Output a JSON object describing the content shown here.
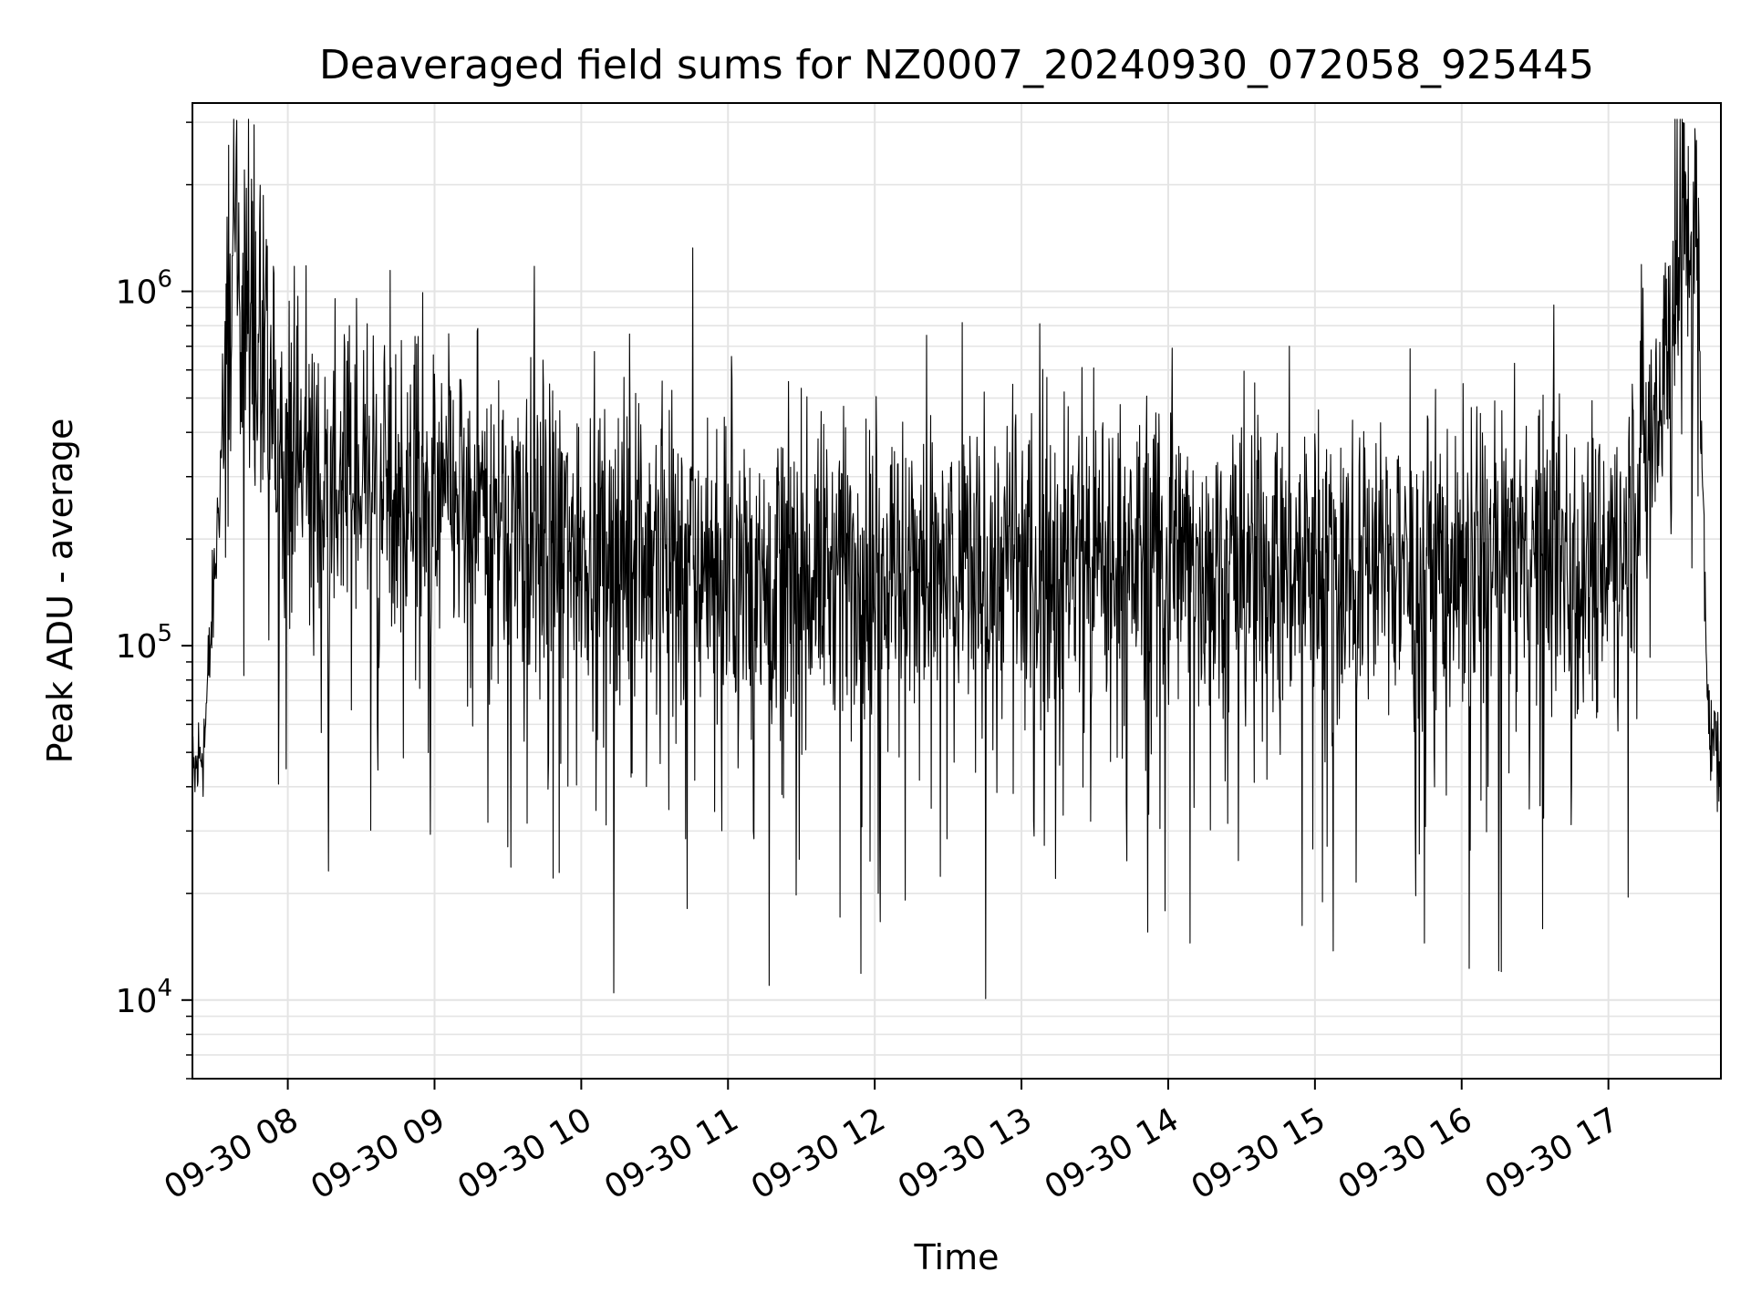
{
  "chart_data": {
    "type": "line",
    "title": "Deaveraged field sums for NZ0007_20240930_072058_925445",
    "xlabel": "Time",
    "ylabel": "Peak ADU - average",
    "yscale": "log",
    "ylim": [
      6000,
      3400000
    ],
    "xlim": [
      "2024-09-30 07:21",
      "2024-09-30 17:46"
    ],
    "x_ticks": [
      "09-30 08",
      "09-30 09",
      "09-30 10",
      "09-30 11",
      "09-30 12",
      "09-30 13",
      "09-30 14",
      "09-30 15",
      "09-30 16",
      "09-30 17"
    ],
    "y_ticks": [
      {
        "value": 10000,
        "base": "10",
        "exp": "4"
      },
      {
        "value": 100000,
        "base": "10",
        "exp": "5"
      },
      {
        "value": 1000000,
        "base": "10",
        "exp": "6"
      }
    ],
    "grid": true,
    "line_color": "#000000",
    "series": [
      {
        "x": [
          "2024-09-30 07:21",
          "2024-09-30 07:26",
          "2024-09-30 07:31",
          "2024-09-30 07:36",
          "2024-09-30 07:41",
          "2024-09-30 07:46",
          "2024-09-30 07:51",
          "2024-09-30 07:56",
          "2024-09-30 08:06",
          "2024-09-30 08:16",
          "2024-09-30 08:36",
          "2024-09-30 09:00",
          "2024-09-30 09:30",
          "2024-09-30 10:00",
          "2024-09-30 10:30",
          "2024-09-30 11:00",
          "2024-09-30 11:30",
          "2024-09-30 12:00",
          "2024-09-30 12:30",
          "2024-09-30 13:00",
          "2024-09-30 13:30",
          "2024-09-30 14:00",
          "2024-09-30 14:30",
          "2024-09-30 15:00",
          "2024-09-30 15:30",
          "2024-09-30 16:00",
          "2024-09-30 16:30",
          "2024-09-30 17:00",
          "2024-09-30 17:10",
          "2024-09-30 17:20",
          "2024-09-30 17:30",
          "2024-09-30 17:36",
          "2024-09-30 17:41",
          "2024-09-30 17:46"
        ],
        "values": [
          40000,
          55000,
          200000,
          1000000,
          1100000,
          800000,
          500000,
          400000,
          320000,
          280000,
          300000,
          260000,
          230000,
          200000,
          190000,
          170000,
          160000,
          170000,
          165000,
          170000,
          180000,
          175000,
          170000,
          175000,
          170000,
          175000,
          180000,
          180000,
          260000,
          500000,
          1300000,
          1400000,
          60000,
          45000
        ]
      }
    ]
  }
}
